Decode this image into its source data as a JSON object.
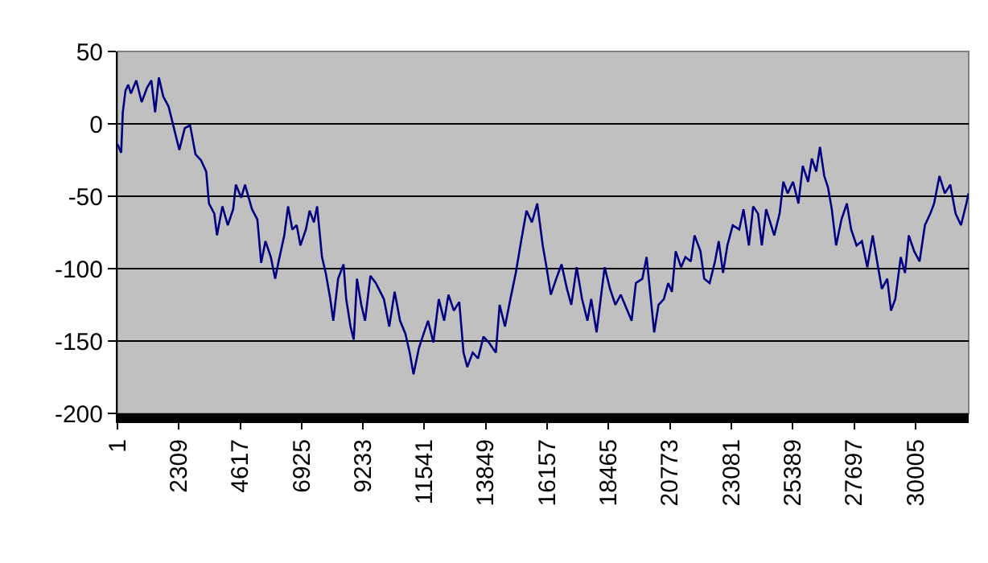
{
  "chart_data": {
    "type": "line",
    "grid": "y",
    "marker": "none",
    "line_style": "solid",
    "xlim": [
      1,
      32008
    ],
    "xticks": [
      1,
      2309,
      4617,
      6925,
      9233,
      11541,
      13849,
      16157,
      18465,
      20773,
      23081,
      25389,
      27697,
      30005
    ],
    "ylim": [
      -200,
      50
    ],
    "yticks": [
      -200,
      -150,
      -100,
      -50,
      0,
      50
    ],
    "x": [
      1,
      141,
      202,
      303,
      405,
      506,
      708,
      911,
      1113,
      1275,
      1417,
      1558,
      1720,
      1923,
      2125,
      2327,
      2530,
      2732,
      2935,
      3137,
      3339,
      3441,
      3643,
      3744,
      3947,
      4149,
      4351,
      4453,
      4655,
      4797,
      5060,
      5262,
      5404,
      5566,
      5768,
      5930,
      6072,
      6274,
      6416,
      6577,
      6740,
      6881,
      7084,
      7226,
      7387,
      7509,
      7691,
      7833,
      7995,
      8116,
      8298,
      8501,
      8602,
      8764,
      8885,
      9007,
      9169,
      9310,
      9513,
      9715,
      10019,
      10221,
      10423,
      10626,
      10828,
      10990,
      11132,
      11334,
      11476,
      11678,
      11880,
      12083,
      12285,
      12447,
      12649,
      12852,
      13014,
      13155,
      13358,
      13560,
      13763,
      13965,
      14228,
      14370,
      14572,
      14775,
      14977,
      15179,
      15381,
      15584,
      15786,
      15992,
      16134,
      16296,
      16498,
      16700,
      16903,
      17065,
      17267,
      17470,
      17672,
      17814,
      18016,
      18218,
      18320,
      18522,
      18724,
      18927,
      19129,
      19332,
      19494,
      19736,
      19898,
      20040,
      20182,
      20344,
      20546,
      20708,
      20850,
      20991,
      21194,
      21356,
      21558,
      21700,
      21923,
      22064,
      22266,
      22469,
      22610,
      22772,
      22934,
      23137,
      23380,
      23542,
      23744,
      23906,
      24088,
      24230,
      24392,
      24695,
      24898,
      25039,
      25201,
      25404,
      25606,
      25768,
      25970,
      26112,
      26274,
      26416,
      26578,
      26719,
      26861,
      27023,
      27225,
      27428,
      27590,
      27792,
      27994,
      28197,
      28399,
      28601,
      28743,
      28946,
      29087,
      29249,
      29452,
      29614,
      29755,
      29958,
      30160,
      30363,
      30565,
      30707,
      30909,
      31111,
      31314,
      31516,
      31719,
      31921,
      32000
    ],
    "series": [
      {
        "color": "#000080",
        "values": [
          -14,
          -20,
          8,
          23,
          27,
          21,
          30,
          15,
          25,
          30,
          8,
          32,
          19,
          12,
          -3,
          -18,
          -3,
          -1,
          -21,
          -25,
          -33,
          -55,
          -62,
          -77,
          -57,
          -70,
          -59,
          -42,
          -51,
          -42,
          -59,
          -66,
          -96,
          -81,
          -92,
          -107,
          -94,
          -77,
          -57,
          -73,
          -70,
          -84,
          -73,
          -60,
          -68,
          -57,
          -92,
          -103,
          -120,
          -136,
          -107,
          -97,
          -121,
          -140,
          -149,
          -107,
          -125,
          -136,
          -105,
          -110,
          -121,
          -140,
          -116,
          -136,
          -145,
          -158,
          -173,
          -155,
          -147,
          -136,
          -151,
          -121,
          -136,
          -118,
          -129,
          -123,
          -158,
          -168,
          -158,
          -162,
          -147,
          -151,
          -158,
          -125,
          -140,
          -121,
          -103,
          -81,
          -60,
          -68,
          -55,
          -84,
          -99,
          -118,
          -107,
          -97,
          -114,
          -125,
          -99,
          -121,
          -136,
          -121,
          -144,
          -114,
          -99,
          -114,
          -125,
          -118,
          -127,
          -136,
          -110,
          -107,
          -92,
          -118,
          -144,
          -125,
          -121,
          -110,
          -116,
          -88,
          -99,
          -92,
          -95,
          -77,
          -88,
          -107,
          -110,
          -95,
          -81,
          -103,
          -84,
          -70,
          -73,
          -59,
          -84,
          -57,
          -62,
          -84,
          -59,
          -77,
          -62,
          -40,
          -48,
          -40,
          -55,
          -29,
          -40,
          -24,
          -33,
          -16,
          -36,
          -44,
          -59,
          -84,
          -66,
          -55,
          -73,
          -84,
          -81,
          -99,
          -77,
          -99,
          -114,
          -107,
          -129,
          -121,
          -92,
          -103,
          -77,
          -88,
          -95,
          -70,
          -62,
          -55,
          -36,
          -48,
          -42,
          -62,
          -70,
          -55,
          -48
        ]
      }
    ]
  }
}
